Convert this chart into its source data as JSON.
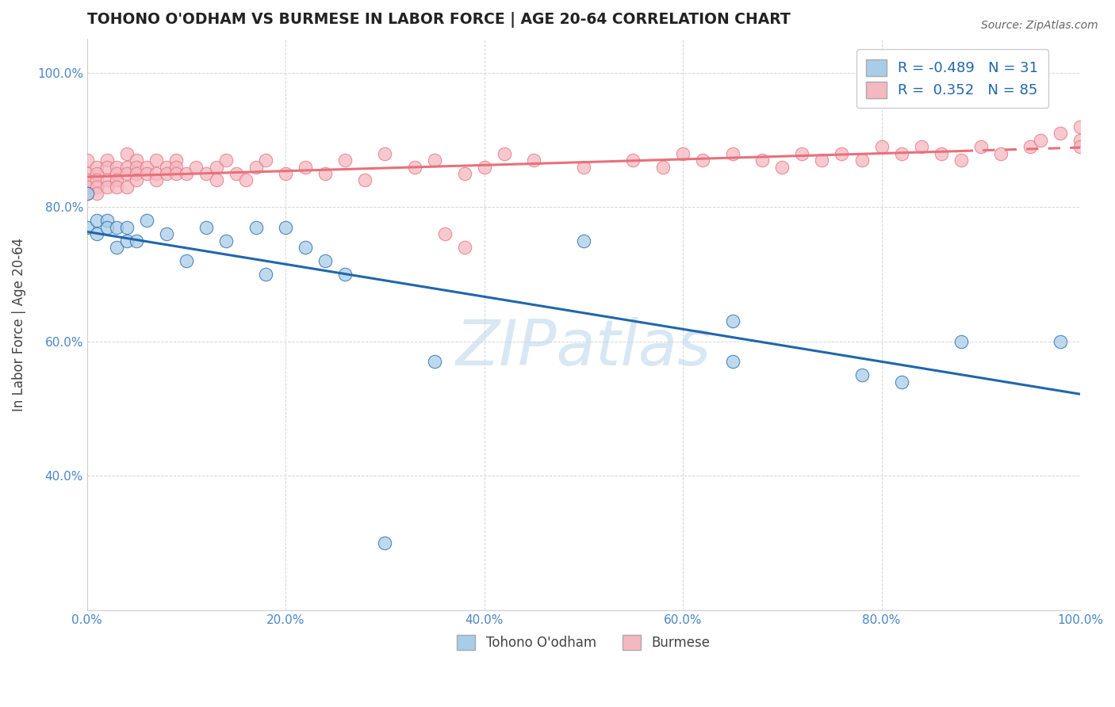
{
  "title": "TOHONO O'ODHAM VS BURMESE IN LABOR FORCE | AGE 20-64 CORRELATION CHART",
  "source_text": "Source: ZipAtlas.com",
  "ylabel": "In Labor Force | Age 20-64",
  "xlim": [
    0.0,
    1.0
  ],
  "ylim": [
    0.2,
    1.05
  ],
  "xticks": [
    0.0,
    0.2,
    0.4,
    0.6,
    0.8,
    1.0
  ],
  "xticklabels": [
    "0.0%",
    "20.0%",
    "40.0%",
    "60.0%",
    "80.0%",
    "100.0%"
  ],
  "yticks": [
    0.4,
    0.6,
    0.8,
    1.0
  ],
  "yticklabels": [
    "40.0%",
    "60.0%",
    "80.0%",
    "100.0%"
  ],
  "legend_labels": [
    "Tohono O'odham",
    "Burmese"
  ],
  "legend_r_values": [
    "-0.489",
    "0.352"
  ],
  "legend_n_values": [
    "31",
    "85"
  ],
  "blue_color": "#a8cde8",
  "pink_color": "#f4b8c1",
  "blue_line_color": "#2166ac",
  "pink_line_color": "#e8707a",
  "watermark": "ZIPatlas",
  "blue_scatter_x": [
    0.0,
    0.0,
    0.01,
    0.01,
    0.02,
    0.02,
    0.03,
    0.03,
    0.04,
    0.04,
    0.05,
    0.06,
    0.08,
    0.1,
    0.12,
    0.14,
    0.17,
    0.18,
    0.2,
    0.22,
    0.24,
    0.26,
    0.3,
    0.35,
    0.5,
    0.65,
    0.65,
    0.78,
    0.82,
    0.88,
    0.98
  ],
  "blue_scatter_y": [
    0.82,
    0.77,
    0.78,
    0.76,
    0.78,
    0.77,
    0.77,
    0.74,
    0.75,
    0.77,
    0.75,
    0.78,
    0.76,
    0.72,
    0.77,
    0.75,
    0.77,
    0.7,
    0.77,
    0.74,
    0.72,
    0.7,
    0.3,
    0.57,
    0.75,
    0.63,
    0.57,
    0.55,
    0.54,
    0.6,
    0.6
  ],
  "pink_scatter_x": [
    0.0,
    0.0,
    0.0,
    0.0,
    0.0,
    0.01,
    0.01,
    0.01,
    0.01,
    0.01,
    0.02,
    0.02,
    0.02,
    0.02,
    0.03,
    0.03,
    0.03,
    0.03,
    0.04,
    0.04,
    0.04,
    0.04,
    0.05,
    0.05,
    0.05,
    0.05,
    0.06,
    0.06,
    0.07,
    0.07,
    0.07,
    0.08,
    0.08,
    0.09,
    0.09,
    0.09,
    0.1,
    0.11,
    0.12,
    0.13,
    0.13,
    0.14,
    0.15,
    0.16,
    0.17,
    0.18,
    0.2,
    0.22,
    0.24,
    0.26,
    0.28,
    0.3,
    0.33,
    0.35,
    0.38,
    0.4,
    0.42,
    0.45,
    0.5,
    0.55,
    0.58,
    0.6,
    0.62,
    0.65,
    0.68,
    0.7,
    0.72,
    0.74,
    0.76,
    0.78,
    0.8,
    0.82,
    0.84,
    0.86,
    0.88,
    0.9,
    0.92,
    0.95,
    0.96,
    0.98,
    1.0,
    1.0,
    1.0,
    0.36,
    0.38
  ],
  "pink_scatter_y": [
    0.87,
    0.85,
    0.84,
    0.83,
    0.82,
    0.86,
    0.85,
    0.84,
    0.83,
    0.82,
    0.87,
    0.86,
    0.84,
    0.83,
    0.86,
    0.85,
    0.84,
    0.83,
    0.88,
    0.86,
    0.85,
    0.83,
    0.87,
    0.86,
    0.85,
    0.84,
    0.86,
    0.85,
    0.87,
    0.85,
    0.84,
    0.86,
    0.85,
    0.87,
    0.86,
    0.85,
    0.85,
    0.86,
    0.85,
    0.86,
    0.84,
    0.87,
    0.85,
    0.84,
    0.86,
    0.87,
    0.85,
    0.86,
    0.85,
    0.87,
    0.84,
    0.88,
    0.86,
    0.87,
    0.85,
    0.86,
    0.88,
    0.87,
    0.86,
    0.87,
    0.86,
    0.88,
    0.87,
    0.88,
    0.87,
    0.86,
    0.88,
    0.87,
    0.88,
    0.87,
    0.89,
    0.88,
    0.89,
    0.88,
    0.87,
    0.89,
    0.88,
    0.89,
    0.9,
    0.91,
    0.92,
    0.9,
    0.89,
    0.76,
    0.74
  ]
}
